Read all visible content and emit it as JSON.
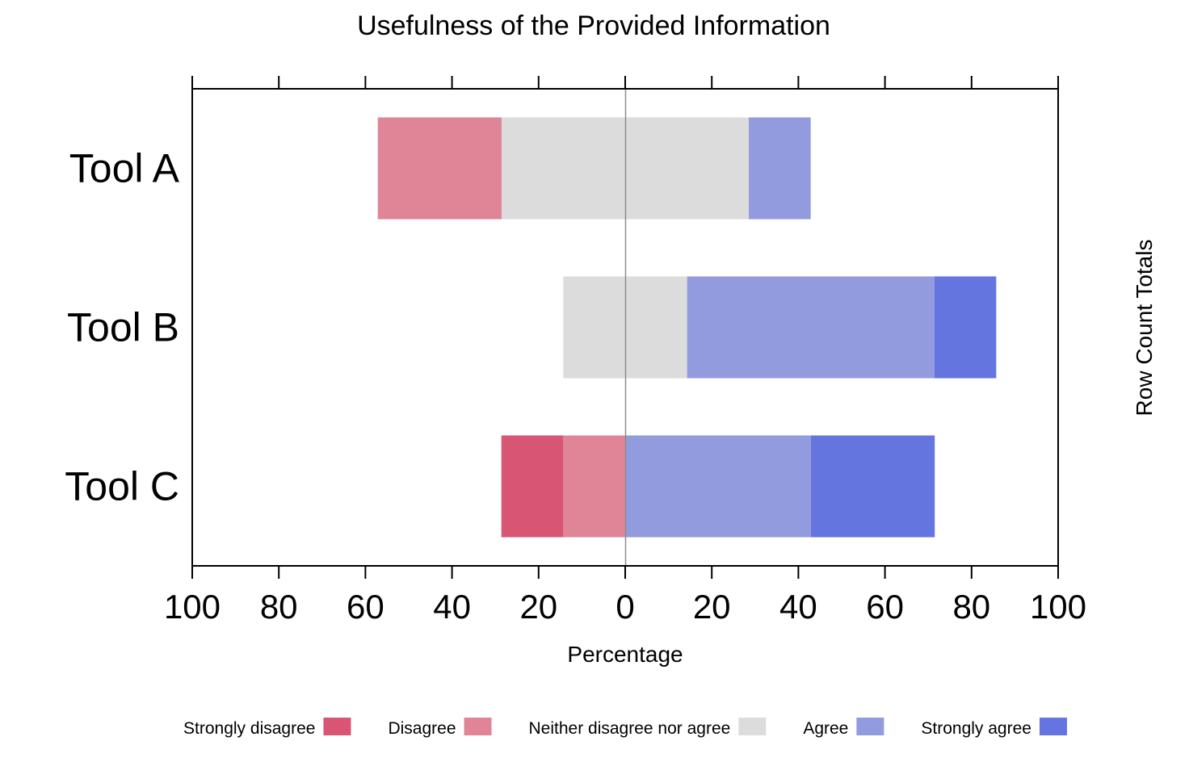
{
  "chart_data": {
    "type": "bar",
    "subtype": "diverging-stacked-likert",
    "orientation": "horizontal",
    "title": "Usefulness of the Provided Information",
    "xlabel": "Percentage",
    "right_label": "Row Count Totals",
    "xlim": [
      -100,
      100
    ],
    "x_ticks": [
      -100,
      -80,
      -60,
      -40,
      -20,
      0,
      20,
      40,
      60,
      80,
      100
    ],
    "x_tick_labels": [
      "100",
      "80",
      "60",
      "40",
      "20",
      "0",
      "20",
      "40",
      "60",
      "80",
      "100"
    ],
    "categories": [
      "Tool A",
      "Tool B",
      "Tool C"
    ],
    "series": [
      {
        "name": "Strongly disagree",
        "color": "#D95574",
        "values": [
          0,
          0,
          14.3
        ]
      },
      {
        "name": "Disagree",
        "color": "#E08598",
        "values": [
          28.6,
          0,
          14.3
        ]
      },
      {
        "name": "Neither disagree nor agree",
        "color": "#DCDCDC",
        "values": [
          57.1,
          28.6,
          0
        ]
      },
      {
        "name": "Agree",
        "color": "#919BDE",
        "values": [
          14.3,
          57.1,
          42.9
        ]
      },
      {
        "name": "Strongly agree",
        "color": "#6575E0",
        "values": [
          0,
          14.3,
          28.6
        ]
      }
    ],
    "neutral_series": "Neither disagree nor agree",
    "legend_position": "bottom",
    "grid": false
  }
}
